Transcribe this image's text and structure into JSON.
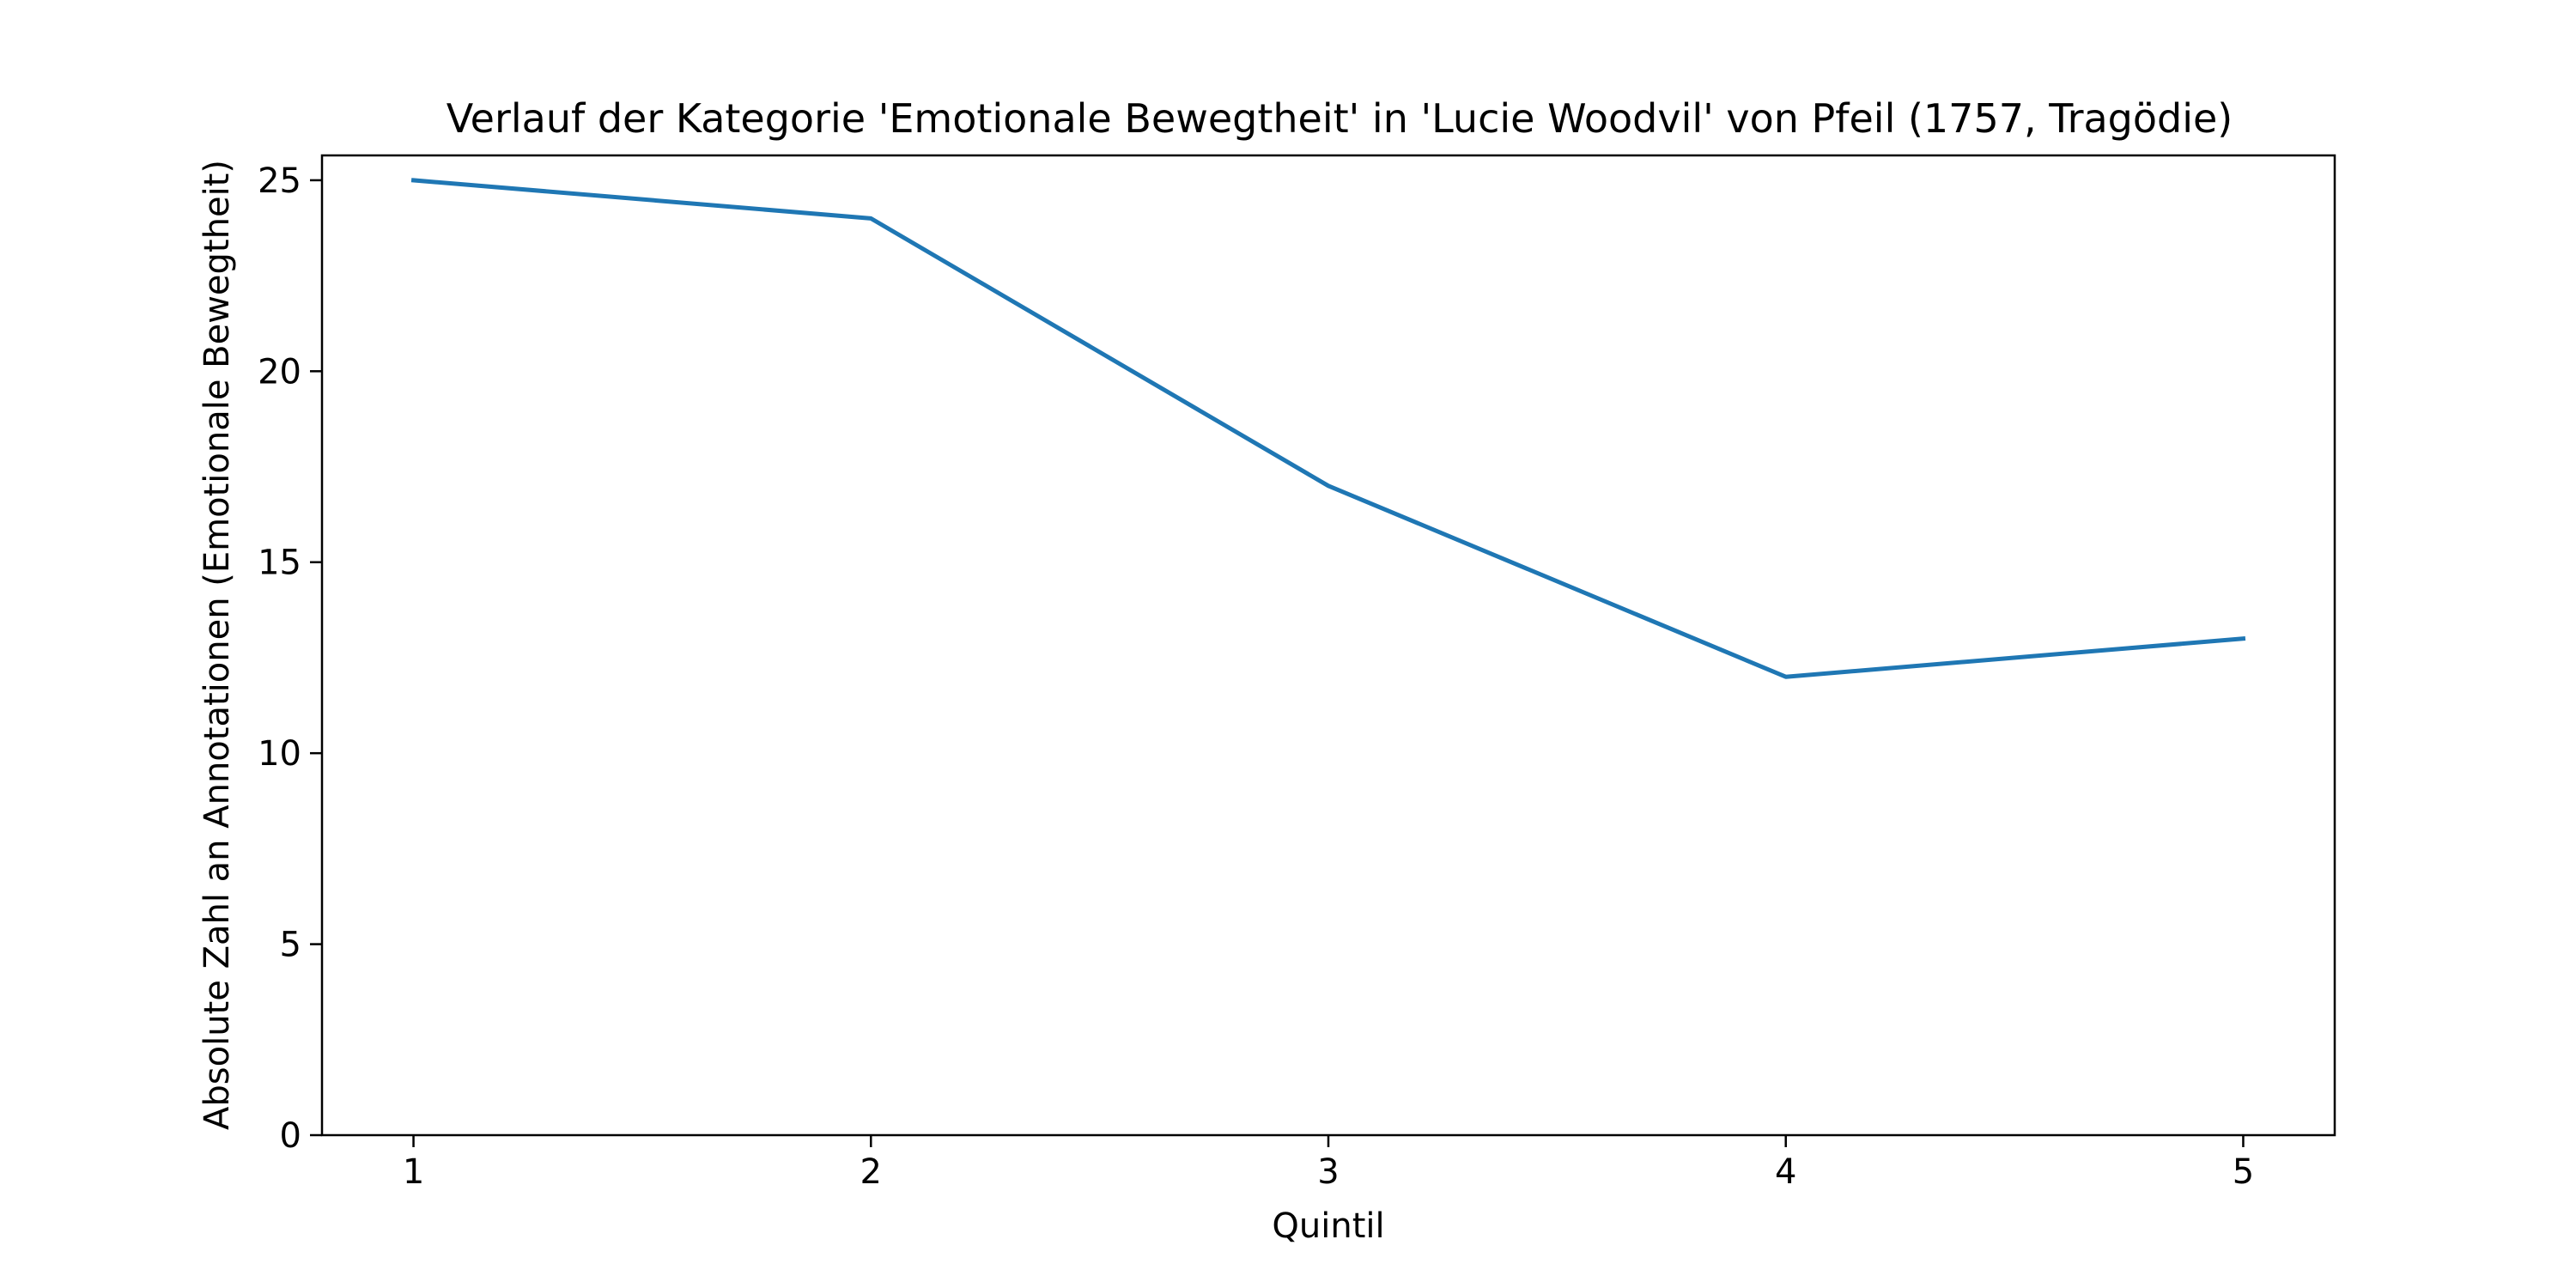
{
  "chart_data": {
    "type": "line",
    "title": "Verlauf der Kategorie 'Emotionale Bewegtheit' in 'Lucie Woodvil' von Pfeil (1757, Tragödie)",
    "xlabel": "Quintil",
    "ylabel": "Absolute Zahl an Annotationen (Emotionale Bewegtheit)",
    "x": [
      1,
      2,
      3,
      4,
      5
    ],
    "xticks": [
      "1",
      "2",
      "3",
      "4",
      "5"
    ],
    "xlim": [
      0.8,
      5.2
    ],
    "yticks": [
      0,
      5,
      10,
      15,
      20,
      25
    ],
    "ylim": [
      0,
      25.65
    ],
    "grid": false,
    "series": [
      {
        "values": [
          25,
          24,
          17,
          12,
          13
        ],
        "color": "#1f77b4"
      }
    ]
  }
}
